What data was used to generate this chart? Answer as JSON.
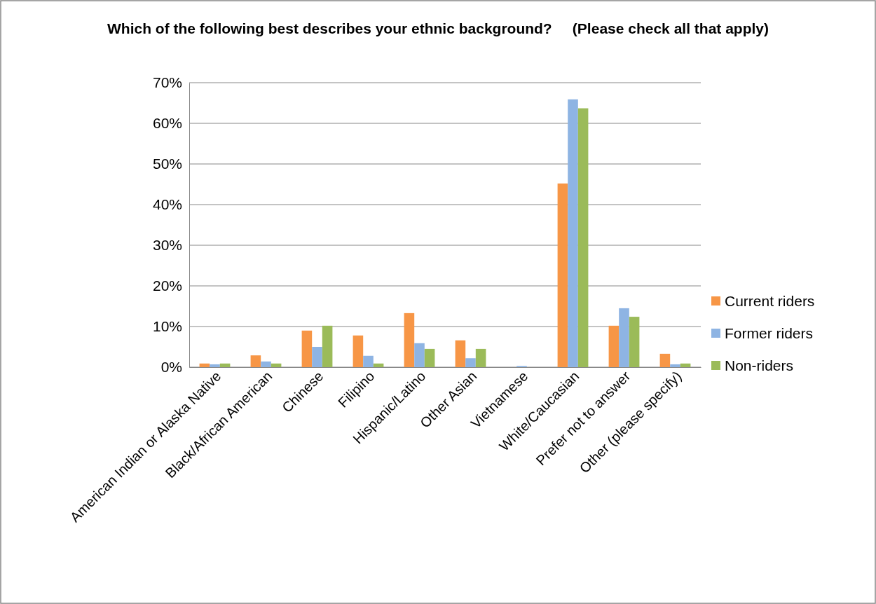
{
  "chart_data": {
    "type": "bar",
    "title": "Which of the following best describes your ethnic background?     (Please check all that apply)",
    "categories": [
      "American Indian or Alaska Native",
      "Black/African American",
      "Chinese",
      "Filipino",
      "Hispanic/Latino",
      "Other Asian",
      "Vietnamese",
      "White/Caucasian",
      "Prefer not to answer",
      "Other (please specify)"
    ],
    "series": [
      {
        "name": "Current riders",
        "color": "#f79646",
        "values": [
          0.9,
          2.9,
          9.0,
          7.8,
          13.3,
          6.6,
          0,
          45.2,
          10.2,
          3.3
        ]
      },
      {
        "name": "Former riders",
        "color": "#8eb4e3",
        "values": [
          0.7,
          1.4,
          5.0,
          2.8,
          5.9,
          2.2,
          0.3,
          65.9,
          14.5,
          0.7
        ]
      },
      {
        "name": "Non-riders",
        "color": "#9bbb59",
        "values": [
          0.9,
          0.9,
          10.2,
          0.9,
          4.5,
          4.5,
          0,
          63.7,
          12.4,
          0.9
        ]
      }
    ],
    "ylim": [
      0,
      70
    ],
    "yticks": [
      {
        "value": 0,
        "label": "0%"
      },
      {
        "value": 10,
        "label": "10%"
      },
      {
        "value": 20,
        "label": "20%"
      },
      {
        "value": 30,
        "label": "30%"
      },
      {
        "value": 40,
        "label": "40%"
      },
      {
        "value": 50,
        "label": "50%"
      },
      {
        "value": 60,
        "label": "60%"
      },
      {
        "value": 70,
        "label": "70%"
      }
    ],
    "grid": "y",
    "legend": "right"
  }
}
